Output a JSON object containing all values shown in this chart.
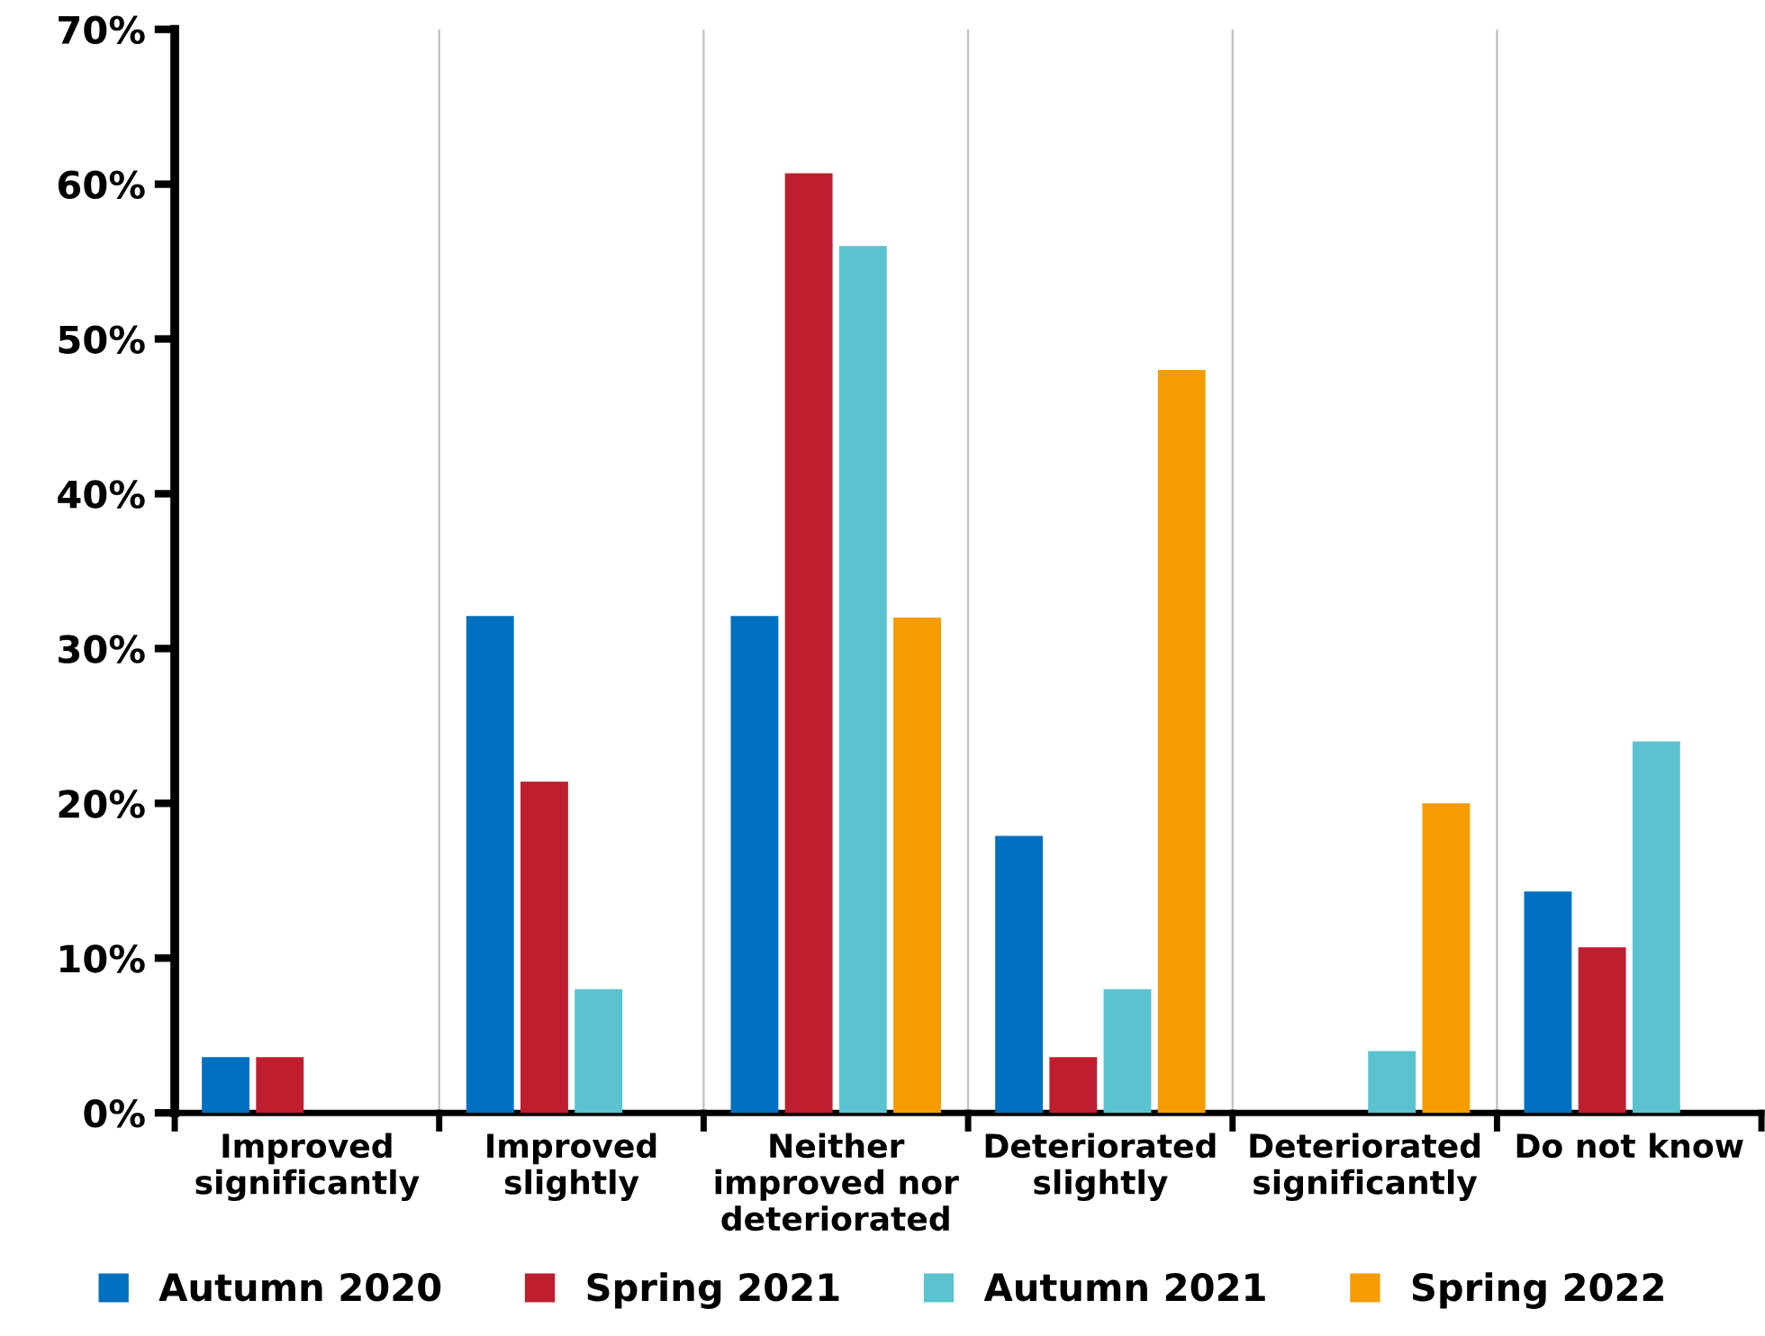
{
  "chart_data": {
    "type": "bar",
    "categories": [
      "Improved\nsignificantly",
      "Improved\nslightly",
      "Neither\nimproved nor\ndeteriorated",
      "Deteriorated\nslightly",
      "Deteriorated\nsignificantly",
      "Do not know"
    ],
    "series": [
      {
        "name": "Autumn 2020",
        "color": "#0070c0",
        "values": [
          3.6,
          32.1,
          32.1,
          17.9,
          0,
          14.3
        ]
      },
      {
        "name": "Spring 2021",
        "color": "#be1e2d",
        "values": [
          3.6,
          21.4,
          60.7,
          3.6,
          0,
          10.7
        ]
      },
      {
        "name": "Autumn 2021",
        "color": "#5bc3d0",
        "values": [
          0,
          8,
          56,
          8,
          4,
          24
        ]
      },
      {
        "name": "Spring 2022",
        "color": "#f59c00",
        "values": [
          0,
          0,
          32,
          48,
          20,
          0
        ]
      }
    ],
    "ylim": [
      0,
      70
    ],
    "yticks": [
      {
        "value": 0,
        "label": "0%"
      },
      {
        "value": 10,
        "label": "10%"
      },
      {
        "value": 20,
        "label": "20%"
      },
      {
        "value": 30,
        "label": "30%"
      },
      {
        "value": 40,
        "label": "40%"
      },
      {
        "value": 50,
        "label": "50%"
      },
      {
        "value": 60,
        "label": "60%"
      },
      {
        "value": 70,
        "label": "70%"
      }
    ],
    "grid": "x",
    "legend": "bottom"
  }
}
